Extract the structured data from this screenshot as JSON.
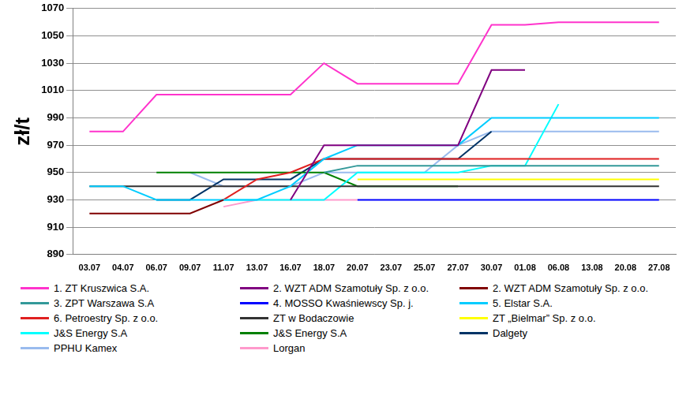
{
  "chart_data": {
    "type": "line",
    "y_label": "zł/t",
    "categories": [
      "03.07",
      "04.07",
      "06.07",
      "09.07",
      "11.07",
      "13.07",
      "16.07",
      "18.07",
      "20.07",
      "23.07",
      "25.07",
      "27.07",
      "30.07",
      "01.08",
      "06.08",
      "13.08",
      "20.08",
      "27.08"
    ],
    "ylim": [
      890,
      1070
    ],
    "yticks": [
      890,
      910,
      930,
      950,
      970,
      990,
      1010,
      1030,
      1050,
      1070
    ],
    "grid": true,
    "legend": "bottom",
    "series": [
      {
        "name": "1. ZT Kruszwica S.A.",
        "color": "#ff33cc",
        "values": [
          980,
          980,
          1007,
          1007,
          1007,
          1007,
          1007,
          1030,
          1015,
          1015,
          1015,
          1015,
          1058,
          1058,
          1060,
          1060,
          1060,
          1060
        ]
      },
      {
        "name": "2. WZT ADM Szamotuły Sp. z o.o.",
        "color": "#800080",
        "values": [
          null,
          null,
          null,
          null,
          null,
          null,
          930,
          970,
          970,
          970,
          970,
          970,
          1025,
          1025,
          null,
          null,
          null,
          null
        ]
      },
      {
        "name": "2. WZT ADM Szamotuły Sp. z o.o.",
        "color": "#800000",
        "values": [
          920,
          920,
          920,
          920,
          930,
          null,
          null,
          null,
          null,
          null,
          null,
          null,
          null,
          null,
          null,
          null,
          null,
          null
        ]
      },
      {
        "name": "3. ZPT Warszawa S.A",
        "color": "#339999",
        "values": [
          null,
          null,
          null,
          null,
          null,
          null,
          null,
          950,
          955,
          955,
          955,
          955,
          955,
          955,
          955,
          955,
          955,
          955
        ]
      },
      {
        "name": "4. MOSSO Kwaśniewscy Sp. j.",
        "color": "#0000ff",
        "values": [
          null,
          null,
          null,
          null,
          null,
          null,
          null,
          null,
          930,
          930,
          930,
          930,
          930,
          930,
          930,
          930,
          930,
          930
        ]
      },
      {
        "name": "5. Elstar S.A.",
        "color": "#00ccff",
        "values": [
          940,
          940,
          930,
          930,
          930,
          930,
          940,
          960,
          970,
          970,
          970,
          970,
          990,
          990,
          990,
          990,
          990,
          990
        ]
      },
      {
        "name": "6. Petroestry Sp. z o.o.",
        "color": "#e02020",
        "values": [
          null,
          null,
          null,
          null,
          930,
          945,
          950,
          960,
          960,
          960,
          960,
          960,
          960,
          960,
          960,
          960,
          960,
          960
        ]
      },
      {
        "name": "ZT w Bodaczowie",
        "color": "#333333",
        "values": [
          940,
          940,
          940,
          940,
          940,
          940,
          940,
          940,
          940,
          940,
          940,
          940,
          940,
          940,
          940,
          940,
          940,
          940
        ]
      },
      {
        "name": "ZT „Bielmar” Sp. z o.o.",
        "color": "#ffff00",
        "values": [
          null,
          null,
          null,
          null,
          null,
          null,
          null,
          null,
          945,
          945,
          945,
          945,
          945,
          945,
          945,
          945,
          945,
          945
        ]
      },
      {
        "name": "J&S Energy S.A",
        "color": "#00ffff",
        "values": [
          null,
          null,
          null,
          null,
          930,
          930,
          930,
          930,
          950,
          950,
          950,
          950,
          955,
          955,
          1000,
          null,
          null,
          null
        ]
      },
      {
        "name": "J&S Energy S.A",
        "color": "#008000",
        "values": [
          null,
          null,
          950,
          950,
          950,
          950,
          950,
          950,
          940,
          940,
          940,
          940,
          null,
          null,
          null,
          null,
          null,
          null
        ]
      },
      {
        "name": "Dalgety",
        "color": "#003366",
        "values": [
          null,
          null,
          930,
          930,
          945,
          945,
          945,
          960,
          960,
          960,
          960,
          960,
          980,
          null,
          null,
          null,
          null,
          null
        ]
      },
      {
        "name": "PPHU Kamex",
        "color": "#99bbee",
        "values": [
          null,
          null,
          null,
          950,
          940,
          940,
          940,
          950,
          950,
          950,
          950,
          970,
          980,
          980,
          980,
          980,
          980,
          980
        ]
      },
      {
        "name": "Lorgan",
        "color": "#ff99cc",
        "values": [
          null,
          null,
          null,
          null,
          925,
          930,
          930,
          930,
          930,
          null,
          null,
          null,
          null,
          null,
          null,
          null,
          null,
          null
        ]
      }
    ]
  }
}
